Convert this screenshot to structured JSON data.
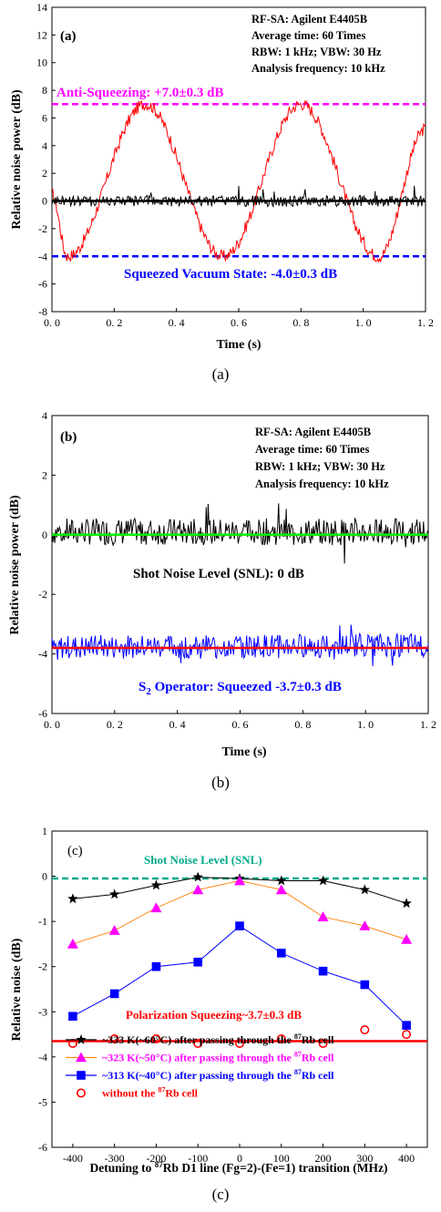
{
  "chart_data": [
    {
      "type": "line",
      "panel_label": "(a)",
      "caption": "(a)",
      "xlabel": "Time (s)",
      "ylabel": "Relative noise power (dB)",
      "xlim": [
        0,
        1.2
      ],
      "ylim": [
        -8,
        14
      ],
      "xticks": [
        "0. 0",
        "0. 2",
        "0. 4",
        "0. 6",
        "0. 8",
        "1. 0",
        "1. 2"
      ],
      "yticks": [
        "-8",
        "-6",
        "-4",
        "-2",
        "0",
        "2",
        "4",
        "6",
        "8",
        "10",
        "12",
        "14"
      ],
      "info_lines": [
        "RF-SA: Agilent E4405B",
        "Average time: 60 Times",
        "RBW: 1 kHz; VBW: 30 Hz",
        "Analysis frequency:  10 kHz"
      ],
      "annotations": [
        "Anti-Squeezing: +7.0±0.3 dB",
        "Squeezed Vacuum State: -4.0±0.3 dB"
      ],
      "reference_lines": [
        {
          "y": 7.0,
          "color": "#ff00ff",
          "style": "dashed"
        },
        {
          "y": -4.0,
          "color": "#0000ff",
          "style": "dashed"
        },
        {
          "y": 0.0,
          "color": "#000000",
          "style": "solid"
        }
      ],
      "series": [
        {
          "color": "#ff0000",
          "x": [
            0,
            0.05,
            0.3,
            0.55,
            0.8,
            1.05,
            1.2
          ],
          "y": [
            0.5,
            -4.0,
            7.0,
            -4.0,
            7.0,
            -4.0,
            5.2
          ]
        },
        {
          "color": "#000000",
          "x": [
            0,
            1.2
          ],
          "y": [
            0,
            0
          ],
          "noise": 0.4
        }
      ]
    },
    {
      "type": "line",
      "panel_label": "(b)",
      "caption": "(b)",
      "xlabel": "Time (s)",
      "ylabel": "Relative noise power (dB)",
      "xlim": [
        0,
        1.2
      ],
      "ylim": [
        -6,
        4
      ],
      "xticks": [
        "0. 0",
        "0. 2",
        "0. 4",
        "0. 6",
        "0. 8",
        "1. 0",
        "1. 2"
      ],
      "yticks": [
        "-6",
        "-4",
        "-2",
        "0",
        "2",
        "4"
      ],
      "info_lines": [
        "RF-SA: Agilent E4405B",
        "Average time: 60 Times",
        "RBW: 1 kHz; VBW: 30 Hz",
        "Analysis frequency:  10 kHz"
      ],
      "annotations": [
        "Shot Noise Level (SNL):   0 dB",
        "S",
        "2",
        " Operator: Squeezed -3.7±0.3 dB"
      ],
      "reference_lines": [
        {
          "y": 0.0,
          "color": "#00ee00",
          "style": "solid"
        },
        {
          "y": -3.8,
          "color": "#ff0000",
          "style": "solid"
        }
      ],
      "series": [
        {
          "color": "#000000",
          "x": [
            0,
            1.2
          ],
          "y": [
            0.1,
            0.1
          ],
          "noise": 0.45
        },
        {
          "color": "#0000ff",
          "x": [
            0,
            1.2
          ],
          "y": [
            -3.8,
            -3.7
          ],
          "noise": 0.4
        }
      ]
    },
    {
      "type": "line",
      "panel_label": "(c)",
      "caption": "(c)",
      "xlabel": "Detuning to 87Rb D1 line (Fg=2)-(Fe=1) transition (MHz)",
      "xlabel_parts": [
        "Detuning to ",
        "87",
        "Rb D1 line (Fg=2)-(Fe=1) transition (MHz)"
      ],
      "ylabel": "Relative noise (dB)",
      "xlim": [
        -450,
        450
      ],
      "ylim": [
        -6,
        1
      ],
      "xticks": [
        "-400",
        "-300",
        "-200",
        "-100",
        "0",
        "100",
        "200",
        "300",
        "400"
      ],
      "yticks": [
        "-6",
        "-5",
        "-4",
        "-3",
        "-2",
        "-1",
        "0",
        "1"
      ],
      "annotations": [
        "Shot Noise Level (SNL)",
        "Polarization Squeezing~3.7±0.3 dB"
      ],
      "reference_lines": [
        {
          "y": -0.05,
          "color": "#00aa88",
          "style": "dashed"
        },
        {
          "y": -3.65,
          "color": "#ff0000",
          "style": "solid"
        }
      ],
      "x": [
        -400,
        -300,
        -200,
        -100,
        0,
        100,
        200,
        300,
        400
      ],
      "series": [
        {
          "name": "~333 K(~60°C) after passing through the 87Rb cell",
          "legend_parts": [
            "~333 K(~60°C) after passing through the ",
            "87",
            "Rb cell"
          ],
          "color": "#000000",
          "line_color": "#000000",
          "marker": "star",
          "values": [
            -0.5,
            -0.4,
            -0.2,
            -0.02,
            -0.05,
            -0.1,
            -0.1,
            -0.3,
            -0.6
          ]
        },
        {
          "name": "~323 K(~50°C) after passing through the 87Rb cell",
          "legend_parts": [
            "~323 K(~50°C) after passing through the ",
            "87",
            "Rb cell"
          ],
          "color": "#ff00ff",
          "line_color": "#ff8c1a",
          "marker": "triangle",
          "values": [
            -1.5,
            -1.2,
            -0.7,
            -0.3,
            -0.1,
            -0.3,
            -0.9,
            -1.1,
            -1.4
          ]
        },
        {
          "name": "~313 K(~40°C) after passing through the 87Rb cell",
          "legend_parts": [
            "~313 K(~40°C) after passing through the ",
            "87",
            "Rb cell"
          ],
          "color": "#0000ff",
          "line_color": "#0000ff",
          "marker": "square",
          "values": [
            -3.1,
            -2.6,
            -2.0,
            -1.9,
            -1.1,
            -1.7,
            -2.1,
            -2.4,
            -3.3
          ]
        },
        {
          "name": "without the 87Rb cell",
          "legend_parts": [
            "without the ",
            "87",
            "Rb cell"
          ],
          "color": "#ff0000",
          "line_color": "none",
          "marker": "circle",
          "values": [
            -3.7,
            -3.6,
            -3.6,
            -3.7,
            -3.7,
            -3.6,
            -3.7,
            -3.4,
            -3.5
          ]
        }
      ]
    }
  ]
}
